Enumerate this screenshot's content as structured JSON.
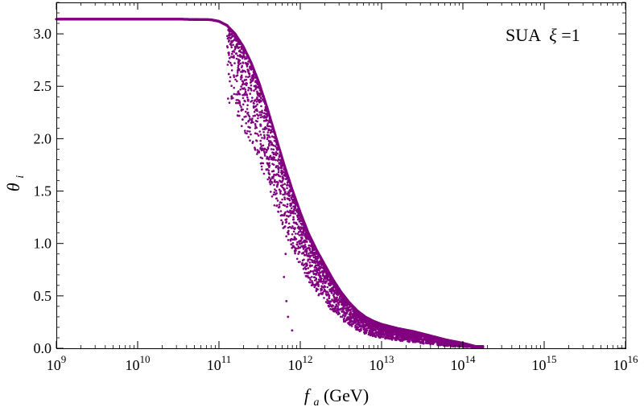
{
  "chart_data": {
    "type": "scatter",
    "title": "",
    "annotation": {
      "label": "SUA",
      "symbol": "ξ",
      "value_text": "=1"
    },
    "xlabel": {
      "symbol": "f",
      "subscript": "a",
      "units": " (GeV)"
    },
    "ylabel": {
      "symbol": "θ",
      "subscript": "i"
    },
    "x_scale": "log",
    "xlim_log10": [
      9,
      16
    ],
    "ylim": [
      0,
      3.3
    ],
    "x_ticks": [
      {
        "base": "10",
        "exp": "9"
      },
      {
        "base": "10",
        "exp": "10"
      },
      {
        "base": "10",
        "exp": "11"
      },
      {
        "base": "10",
        "exp": "12"
      },
      {
        "base": "10",
        "exp": "13"
      },
      {
        "base": "10",
        "exp": "14"
      },
      {
        "base": "10",
        "exp": "15"
      },
      {
        "base": "10",
        "exp": "16"
      }
    ],
    "y_ticks": [
      "0.0",
      "0.5",
      "1.0",
      "1.5",
      "2.0",
      "2.5",
      "3.0"
    ],
    "marker_color": "#800080",
    "upper_envelope": [
      [
        9.0,
        3.14
      ],
      [
        10.5,
        3.14
      ],
      [
        10.9,
        3.135
      ],
      [
        11.0,
        3.12
      ],
      [
        11.1,
        3.08
      ],
      [
        11.2,
        3.0
      ],
      [
        11.3,
        2.88
      ],
      [
        11.4,
        2.72
      ],
      [
        11.5,
        2.52
      ],
      [
        11.6,
        2.28
      ],
      [
        11.7,
        2.02
      ],
      [
        11.8,
        1.76
      ],
      [
        11.9,
        1.52
      ],
      [
        12.0,
        1.3
      ],
      [
        12.1,
        1.1
      ],
      [
        12.2,
        0.94
      ],
      [
        12.3,
        0.8
      ],
      [
        12.4,
        0.66
      ],
      [
        12.5,
        0.54
      ],
      [
        12.6,
        0.44
      ],
      [
        12.7,
        0.36
      ],
      [
        12.8,
        0.3
      ],
      [
        12.9,
        0.26
      ],
      [
        13.0,
        0.23
      ],
      [
        13.2,
        0.19
      ],
      [
        13.4,
        0.16
      ],
      [
        13.6,
        0.12
      ],
      [
        13.8,
        0.08
      ],
      [
        14.0,
        0.05
      ],
      [
        14.15,
        0.02
      ]
    ],
    "scatter_min_x_log10": 11.1,
    "scatter_max_x_log10": 14.25,
    "outliers": [
      [
        11.9,
        0.17
      ],
      [
        11.85,
        0.3
      ],
      [
        11.83,
        0.45
      ],
      [
        11.8,
        0.68
      ],
      [
        11.82,
        0.9
      ]
    ],
    "n_points": 5500
  }
}
